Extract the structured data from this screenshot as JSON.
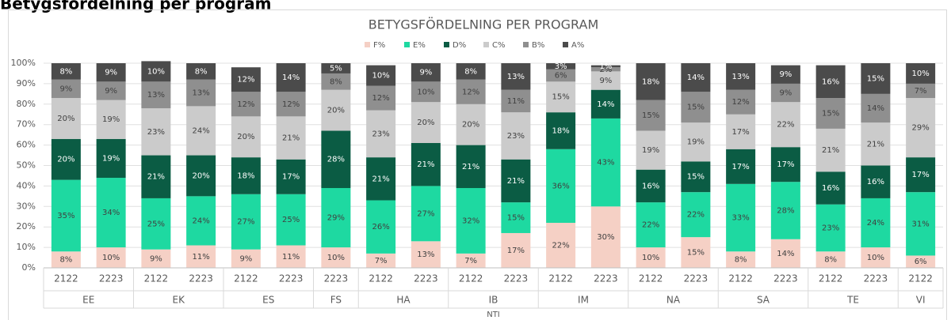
{
  "page_title": "Betygsfördelning per program",
  "chart_data": {
    "type": "stacked_bar",
    "title": "BETYGSFÖRDELNING PER PROGRAM",
    "categories": [
      "2122",
      "2223",
      "2122",
      "2223",
      "2122",
      "2223",
      "2223",
      "2122",
      "2223",
      "2122",
      "2223",
      "2122",
      "2223",
      "2122",
      "2223",
      "2122",
      "2223",
      "2122",
      "2223",
      "2122"
    ],
    "groups": [
      {
        "name": "EE",
        "span": 2
      },
      {
        "name": "EK",
        "span": 2
      },
      {
        "name": "ES",
        "span": 2
      },
      {
        "name": "FS",
        "span": 1
      },
      {
        "name": "HA",
        "span": 2
      },
      {
        "name": "IB",
        "span": 2
      },
      {
        "name": "IM",
        "span": 2
      },
      {
        "name": "NA",
        "span": 2
      },
      {
        "name": "SA",
        "span": 2
      },
      {
        "name": "TE",
        "span": 2
      },
      {
        "name": "VI",
        "span": 1
      }
    ],
    "super_group": "NTI",
    "series": [
      {
        "name": "F%",
        "color": "#f5d0c5",
        "values": [
          8,
          10,
          9,
          11,
          9,
          11,
          10,
          7,
          13,
          7,
          17,
          22,
          30,
          10,
          15,
          8,
          14,
          8,
          10,
          6
        ],
        "value_labels": [
          "8%",
          "10%",
          "9%",
          "11%",
          "9%",
          "11%",
          "10%",
          "7%",
          "13%",
          "7%",
          "17%",
          "22%",
          "30%",
          "10%",
          "15%",
          "8%",
          "14%",
          "8%",
          "10%",
          "6%"
        ]
      },
      {
        "name": "E%",
        "color": "#1ed9a1",
        "values": [
          35,
          34,
          25,
          24,
          27,
          25,
          29,
          26,
          27,
          32,
          15,
          36,
          43,
          22,
          22,
          33,
          28,
          23,
          24,
          31
        ],
        "value_labels": [
          "35%",
          "34%",
          "25%",
          "24%",
          "27%",
          "25%",
          "29%",
          "26%",
          "27%",
          "32%",
          "15%",
          "36%",
          "43%",
          "22%",
          "22%",
          "33%",
          "28%",
          "23%",
          "24%",
          "31%"
        ]
      },
      {
        "name": "D%",
        "color": "#0b5c44",
        "values": [
          20,
          19,
          21,
          20,
          18,
          17,
          28,
          21,
          21,
          21,
          21,
          18,
          14,
          16,
          15,
          17,
          17,
          16,
          16,
          17
        ],
        "value_labels": [
          "20%",
          "19%",
          "21%",
          "20%",
          "18%",
          "17%",
          "28%",
          "21%",
          "21%",
          "21%",
          "21%",
          "18%",
          "14%",
          "16%",
          "15%",
          "17%",
          "17%",
          "16%",
          "16%",
          "17%"
        ]
      },
      {
        "name": "C%",
        "color": "#cbcbcb",
        "values": [
          20,
          19,
          23,
          24,
          20,
          21,
          20,
          23,
          20,
          20,
          23,
          15,
          9,
          19,
          19,
          17,
          22,
          21,
          21,
          29
        ],
        "value_labels": [
          "20%",
          "19%",
          "23%",
          "24%",
          "20%",
          "21%",
          "20%",
          "23%",
          "20%",
          "20%",
          "23%",
          "15%",
          "9%",
          "19%",
          "19%",
          "17%",
          "22%",
          "21%",
          "21%",
          "29%"
        ]
      },
      {
        "name": "B%",
        "color": "#8f8f8f",
        "values": [
          9,
          9,
          13,
          13,
          12,
          12,
          8,
          12,
          10,
          12,
          11,
          6,
          2,
          15,
          15,
          12,
          9,
          15,
          14,
          7
        ],
        "value_labels": [
          "9%",
          "9%",
          "13%",
          "13%",
          "12%",
          "12%",
          "8%",
          "12%",
          "10%",
          "12%",
          "11%",
          "6%",
          "2%",
          "15%",
          "15%",
          "12%",
          "9%",
          "15%",
          "14%",
          "7%"
        ]
      },
      {
        "name": "A%",
        "color": "#4b4b4b",
        "values": [
          8,
          9,
          10,
          8,
          12,
          14,
          5,
          10,
          9,
          8,
          13,
          3,
          1,
          18,
          14,
          13,
          9,
          16,
          15,
          10
        ],
        "value_labels": [
          "8%",
          "9%",
          "10%",
          "8%",
          "12%",
          "14%",
          "5%",
          "10%",
          "9%",
          "8%",
          "13%",
          "3%",
          "1%",
          "18%",
          "14%",
          "13%",
          "9%",
          "16%",
          "15%",
          "10%"
        ]
      }
    ],
    "ylim": [
      0,
      100
    ],
    "yticks": [
      {
        "value": 0,
        "label": "0%"
      },
      {
        "value": 10,
        "label": "10%"
      },
      {
        "value": 20,
        "label": "20%"
      },
      {
        "value": 30,
        "label": "30%"
      },
      {
        "value": 40,
        "label": "40%"
      },
      {
        "value": 50,
        "label": "50%"
      },
      {
        "value": 60,
        "label": "60%"
      },
      {
        "value": 70,
        "label": "70%"
      },
      {
        "value": 80,
        "label": "80%"
      },
      {
        "value": 90,
        "label": "90%"
      },
      {
        "value": 100,
        "label": "100%"
      }
    ],
    "grid": true,
    "legend": "top"
  }
}
